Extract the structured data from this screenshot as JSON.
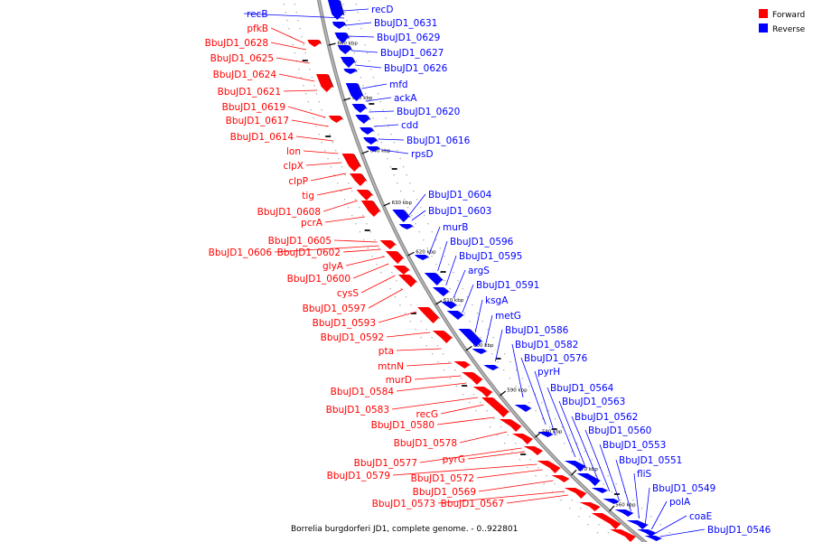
{
  "legend": {
    "forward_label": "Forward",
    "reverse_label": "Reverse",
    "forward_color": "#ff0000",
    "reverse_color": "#0000ff"
  },
  "caption": "Borrelia burgdorferi JD1, complete genome. - 0..922801",
  "ticks": [
    "660 kbp",
    "650 kbp",
    "640 kbp",
    "630 kbp",
    "620 kbp",
    "610 kbp",
    "600 kbp",
    "590 kbp",
    "580 kbp",
    "570 kbp",
    "560 kbp"
  ],
  "forward_genes": [
    "pfkB",
    "BbuJD1_0628",
    "BbuJD1_0625",
    "BbuJD1_0624",
    "BbuJD1_0621",
    "BbuJD1_0619",
    "BbuJD1_0617",
    "BbuJD1_0614",
    "lon",
    "clpX",
    "clpP",
    "tig",
    "BbuJD1_0608",
    "pcrA",
    "BbuJD1_0605",
    "BbuJD1_0606",
    "BbuJD1_0602",
    "glyA",
    "BbuJD1_0600",
    "cysS",
    "BbuJD1_0597",
    "BbuJD1_0593",
    "BbuJD1_0592",
    "pta",
    "mtnN",
    "murD",
    "BbuJD1_0584",
    "BbuJD1_0583",
    "recG",
    "BbuJD1_0580",
    "BbuJD1_0578",
    "BbuJD1_0577",
    "pyrG",
    "BbuJD1_0579",
    "BbuJD1_0572",
    "BbuJD1_0569",
    "BbuJD1_0573",
    "BbuJD1_0567"
  ],
  "reverse_genes": [
    "recB",
    "recD",
    "BbuJD1_0631",
    "BbuJD1_0629",
    "BbuJD1_0627",
    "BbuJD1_0626",
    "mfd",
    "ackA",
    "BbuJD1_0620",
    "cdd",
    "BbuJD1_0616",
    "rpsD",
    "BbuJD1_0604",
    "BbuJD1_0603",
    "murB",
    "BbuJD1_0596",
    "BbuJD1_0595",
    "argS",
    "BbuJD1_0591",
    "ksgA",
    "metG",
    "BbuJD1_0586",
    "BbuJD1_0582",
    "BbuJD1_0576",
    "pyrH",
    "BbuJD1_0564",
    "BbuJD1_0563",
    "BbuJD1_0562",
    "BbuJD1_0560",
    "BbuJD1_0553",
    "BbuJD1_0551",
    "fliS",
    "BbuJD1_0549",
    "polA",
    "coaE",
    "BbuJD1_0546"
  ]
}
